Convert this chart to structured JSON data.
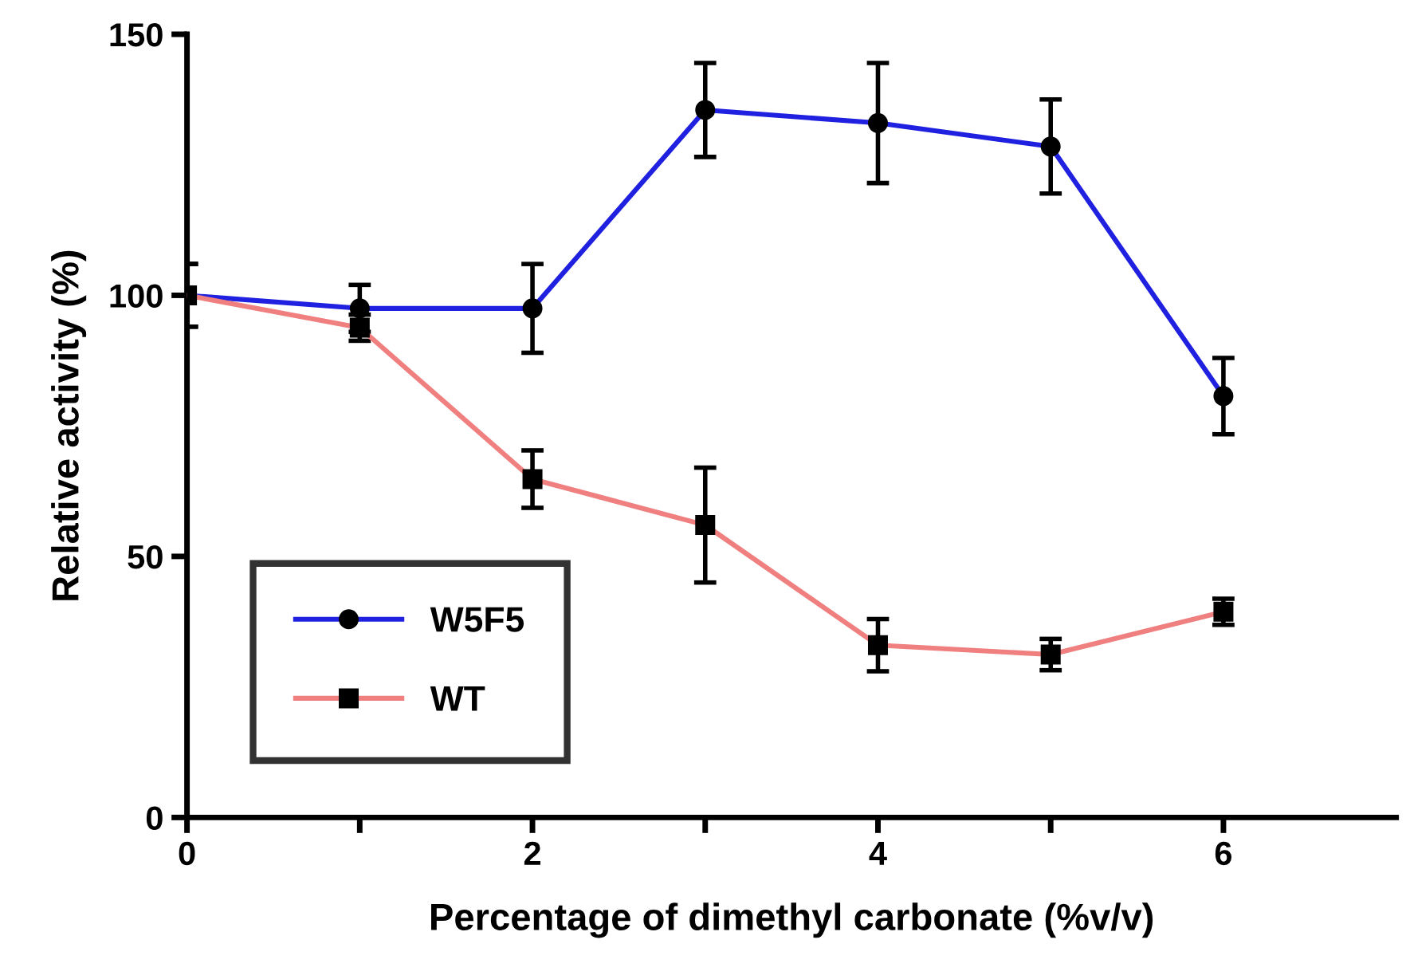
{
  "chart_data": {
    "type": "line",
    "xlabel": "Percentage of dimethyl carbonate (%v/v)",
    "ylabel": "Relative activity (%)",
    "xlim": [
      0,
      7
    ],
    "ylim": [
      0,
      150
    ],
    "xticks": [
      0,
      {
        "value": 1,
        "label": null
      },
      2,
      {
        "value": 3,
        "label": null
      },
      4,
      {
        "value": 5,
        "label": null
      },
      6
    ],
    "yticks": [
      0,
      50,
      100,
      150
    ],
    "grid": false,
    "legend": "bottom left",
    "line_style": "solid",
    "x": [
      0,
      1,
      2,
      3,
      4,
      5,
      6
    ],
    "series": [
      {
        "name": "W5F5",
        "color": "#2020e0",
        "marker": "circle",
        "values": [
          100,
          97.5,
          97.5,
          135.5,
          133,
          128.5,
          80.7
        ],
        "errors": [
          6,
          4.5,
          8.5,
          9,
          11.5,
          9,
          7.3
        ]
      },
      {
        "name": "WT",
        "color": "#f08080",
        "marker": "square",
        "values": [
          100,
          93.8,
          64.8,
          56,
          33,
          31.2,
          39.4
        ],
        "errors": [
          6,
          2.5,
          5.5,
          11,
          5,
          3,
          2.5
        ]
      }
    ]
  }
}
